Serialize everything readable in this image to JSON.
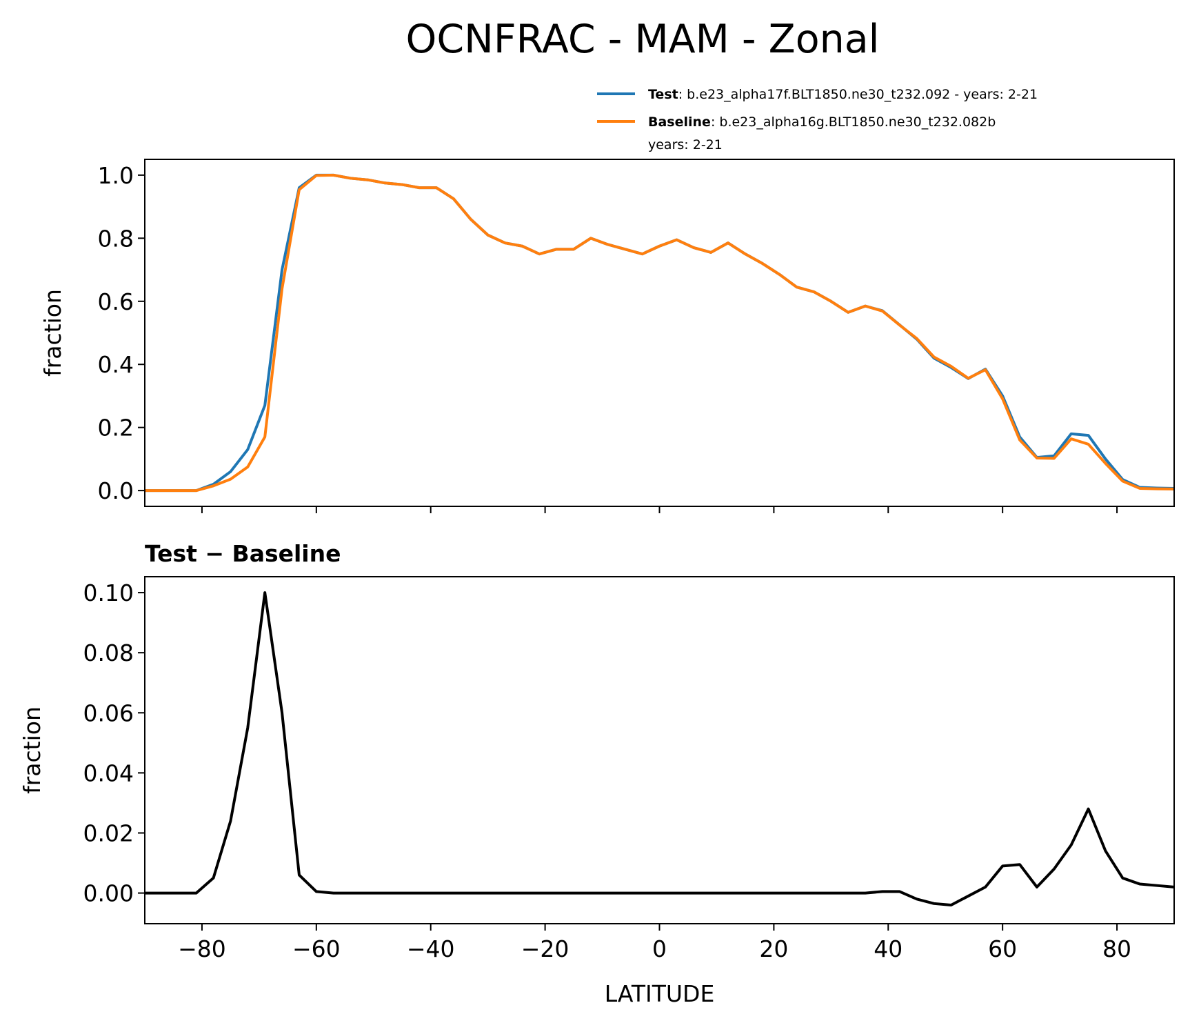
{
  "chart_data": [
    {
      "type": "line",
      "title": "OCNFRAC - MAM - Zonal",
      "ylabel": "fraction",
      "x": [
        -90,
        -87,
        -84,
        -81,
        -78,
        -75,
        -72,
        -69,
        -66,
        -63,
        -60,
        -57,
        -54,
        -51,
        -48,
        -45,
        -42,
        -39,
        -36,
        -33,
        -30,
        -27,
        -24,
        -21,
        -18,
        -15,
        -12,
        -9,
        -6,
        -3,
        0,
        3,
        6,
        9,
        12,
        15,
        18,
        21,
        24,
        27,
        30,
        33,
        36,
        39,
        42,
        45,
        48,
        51,
        54,
        57,
        60,
        63,
        66,
        69,
        72,
        75,
        78,
        81,
        84,
        87,
        90
      ],
      "series": [
        {
          "name": "Test",
          "legend_label": [
            ": b.e23_alpha17f.BLT1850.ne30_t232.092 - years: 2-21"
          ],
          "color": "#1f77b4",
          "values": [
            0,
            0,
            0,
            0,
            0.02,
            0.06,
            0.13,
            0.27,
            0.7,
            0.96,
            1.0,
            1.0,
            0.99,
            0.985,
            0.975,
            0.97,
            0.96,
            0.96,
            0.925,
            0.86,
            0.81,
            0.785,
            0.775,
            0.75,
            0.765,
            0.765,
            0.8,
            0.78,
            0.765,
            0.75,
            0.775,
            0.795,
            0.77,
            0.755,
            0.785,
            0.75,
            0.72,
            0.685,
            0.645,
            0.63,
            0.6,
            0.565,
            0.585,
            0.57,
            0.525,
            0.48,
            0.42,
            0.39,
            0.355,
            0.385,
            0.3,
            0.17,
            0.105,
            0.11,
            0.18,
            0.175,
            0.1,
            0.035,
            0.01,
            0.008,
            0.007
          ]
        },
        {
          "name": "Baseline",
          "legend_label": [
            ": b.e23_alpha16g.BLT1850.ne30_t232.082b",
            "years: 2-21"
          ],
          "color": "#ff7f0e",
          "values": [
            0,
            0,
            0,
            0,
            0.015,
            0.036,
            0.075,
            0.17,
            0.64,
            0.954,
            0.999,
            1.0,
            0.99,
            0.985,
            0.975,
            0.97,
            0.96,
            0.96,
            0.925,
            0.86,
            0.81,
            0.785,
            0.775,
            0.75,
            0.765,
            0.765,
            0.8,
            0.78,
            0.765,
            0.75,
            0.775,
            0.795,
            0.77,
            0.755,
            0.785,
            0.75,
            0.72,
            0.685,
            0.645,
            0.63,
            0.6,
            0.565,
            0.585,
            0.569,
            0.5245,
            0.482,
            0.4235,
            0.394,
            0.356,
            0.383,
            0.291,
            0.1605,
            0.103,
            0.102,
            0.164,
            0.147,
            0.086,
            0.03,
            0.007,
            0.0055,
            0.005
          ]
        }
      ],
      "xlim": [
        -90,
        90
      ],
      "xticks": [
        -80,
        -60,
        -40,
        -20,
        0,
        20,
        40,
        60,
        80
      ],
      "show_xticklabels": false,
      "ylim": [
        -0.05,
        1.05
      ],
      "yticks": [
        {
          "value": 0,
          "label": "0.0"
        },
        0.2,
        0.4,
        0.6,
        0.8,
        {
          "value": 1,
          "label": "1.0"
        }
      ],
      "legend": "upper right"
    },
    {
      "type": "line",
      "title": "Test − Baseline",
      "xlabel": "LATITUDE",
      "ylabel": "fraction",
      "x": [
        -90,
        -87,
        -84,
        -81,
        -78,
        -75,
        -72,
        -69,
        -66,
        -63,
        -60,
        -57,
        -54,
        -51,
        -48,
        -45,
        -42,
        -39,
        -36,
        -33,
        -30,
        -27,
        -24,
        -21,
        -18,
        -15,
        -12,
        -9,
        -6,
        -3,
        0,
        3,
        6,
        9,
        12,
        15,
        18,
        21,
        24,
        27,
        30,
        33,
        36,
        39,
        42,
        45,
        48,
        51,
        54,
        57,
        60,
        63,
        66,
        69,
        72,
        75,
        78,
        81,
        84,
        87,
        90
      ],
      "series": [
        {
          "color": "#000000",
          "values": [
            0,
            0,
            0,
            0,
            0.005,
            0.024,
            0.055,
            0.1,
            0.06,
            0.006,
            0.0005,
            0,
            0,
            0,
            0,
            0,
            0,
            0,
            0,
            0,
            0,
            0,
            0,
            0,
            0,
            0,
            0,
            0,
            0,
            0,
            0,
            0,
            0,
            0,
            0,
            0,
            0,
            0,
            0,
            0,
            0,
            0,
            0,
            0.0005,
            0.0005,
            -0.002,
            -0.0035,
            -0.004,
            -0.001,
            0.002,
            0.009,
            0.0095,
            0.002,
            0.008,
            0.016,
            0.028,
            0.014,
            0.005,
            0.003,
            0.0025,
            0.002
          ]
        }
      ],
      "xlim": [
        -90,
        90
      ],
      "xticks": [
        {
          "value": -80,
          "label": "−80"
        },
        {
          "value": -60,
          "label": "−60"
        },
        {
          "value": -40,
          "label": "−40"
        },
        {
          "value": -20,
          "label": "−20"
        },
        0,
        20,
        40,
        60,
        80
      ],
      "show_xticklabels": true,
      "ylim": [
        -0.0102,
        0.1053
      ],
      "yticks": [
        {
          "value": 0,
          "label": "0.00"
        },
        0.02,
        0.04,
        0.06,
        0.08,
        {
          "value": 0.1,
          "label": "0.10"
        }
      ]
    }
  ]
}
